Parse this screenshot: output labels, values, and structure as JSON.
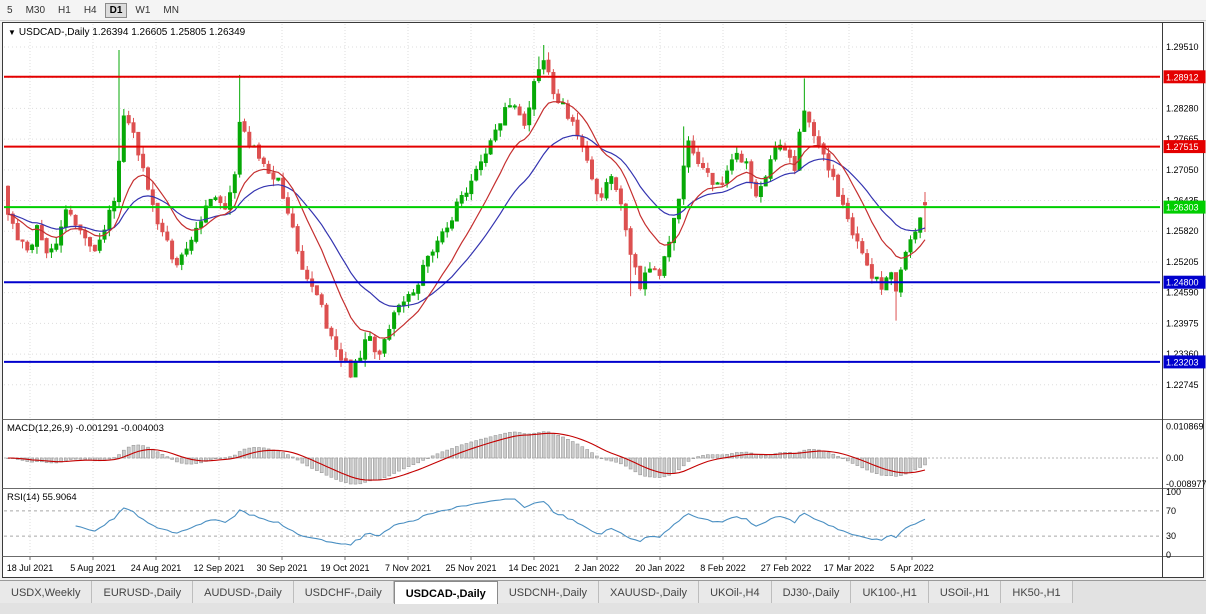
{
  "toolbar": {
    "timeframes": [
      "5",
      "M30",
      "H1",
      "H4",
      "D1",
      "W1",
      "MN"
    ],
    "active": "D1"
  },
  "chart": {
    "title": "USDCAD-,Daily 1.26394 1.26605 1.25805 1.26349",
    "symbol": "USDCAD-,Daily",
    "ohlc_display": {
      "open": "1.26394",
      "high": "1.26605",
      "low": "1.25805",
      "close": "1.26349"
    },
    "price_axis_ticks": [
      "1.29510",
      "1.28895",
      "1.28280",
      "1.27665",
      "1.27050",
      "1.26435",
      "1.25820",
      "1.25205",
      "1.24590",
      "1.23975",
      "1.23360",
      "1.22745"
    ],
    "level_labels": [
      "1.28912",
      "1.27515",
      "1.26303",
      "1.24800",
      "1.23203"
    ],
    "dates": [
      "18 Jul 2021",
      "5 Aug 2021",
      "24 Aug 2021",
      "12 Sep 2021",
      "30 Sep 2021",
      "19 Oct 2021",
      "7 Nov 2021",
      "25 Nov 2021",
      "14 Dec 2021",
      "2 Jan 2022",
      "20 Jan 2022",
      "8 Feb 2022",
      "27 Feb 2022",
      "17 Mar 2022",
      "5 Apr 2022"
    ]
  },
  "macd": {
    "title": "MACD(12,26,9) -0.001291 -0.004003",
    "value": "-0.001291",
    "signal_value": "-0.004003",
    "axis": [
      "0.010869",
      "0.00",
      "-0.008977"
    ]
  },
  "rsi": {
    "title": "RSI(14) 55.9064",
    "value": "55.9064",
    "axis": [
      "100",
      "70",
      "30",
      "0"
    ]
  },
  "tabs": {
    "items": [
      "USDX,Weekly",
      "EURUSD-,Daily",
      "AUDUSD-,Daily",
      "USDCHF-,Daily",
      "USDCAD-,Daily",
      "USDCNH-,Daily",
      "XAUUSD-,Daily",
      "UKOil-,H4",
      "DJ30-,Daily",
      "UK100-,H1",
      "USOil-,H1",
      "HK50-,H1"
    ],
    "selected": "USDCAD-,Daily"
  },
  "colors": {
    "candle_up": "#07a907",
    "candle_down": "#dd5050",
    "ma_fast": "#c52f2f",
    "ma_slow": "#3434b0",
    "macd_signal": "#c30000",
    "macd_hist_fill": "#cccccc",
    "macd_hist_stroke": "#9a9a9a",
    "rsi_line": "#4a8fc2",
    "level_red": "#e40000",
    "level_green": "#00ce00",
    "level_blue": "#0000cd",
    "grid": "#dddddd"
  },
  "chart_data": {
    "type": "candlestick",
    "symbol": "USDCAD",
    "timeframe": "Daily",
    "bars": 191,
    "y_range": [
      1.2208,
      1.2997
    ],
    "x_range_dates": [
      "18 Jul 2021",
      "5 Apr 2022"
    ],
    "last_bar": {
      "open": 1.26394,
      "high": 1.26605,
      "low": 1.25805,
      "close": 1.26349
    },
    "close_anchors": [
      [
        0,
        1.262
      ],
      [
        2,
        1.2565
      ],
      [
        4,
        1.2545
      ],
      [
        6,
        1.2585
      ],
      [
        8,
        1.253
      ],
      [
        10,
        1.2555
      ],
      [
        12,
        1.2618
      ],
      [
        14,
        1.26
      ],
      [
        16,
        1.2568
      ],
      [
        18,
        1.2545
      ],
      [
        20,
        1.259
      ],
      [
        22,
        1.265
      ],
      [
        23,
        1.272
      ],
      [
        24,
        1.2815
      ],
      [
        26,
        1.2788
      ],
      [
        28,
        1.27
      ],
      [
        31,
        1.2605
      ],
      [
        33,
        1.2555
      ],
      [
        35,
        1.251
      ],
      [
        37,
        1.2545
      ],
      [
        39,
        1.258
      ],
      [
        41,
        1.2635
      ],
      [
        43,
        1.2645
      ],
      [
        45,
        1.263
      ],
      [
        47,
        1.27
      ],
      [
        48,
        1.2805
      ],
      [
        50,
        1.2762
      ],
      [
        52,
        1.2722
      ],
      [
        54,
        1.2695
      ],
      [
        56,
        1.2678
      ],
      [
        58,
        1.2625
      ],
      [
        60,
        1.254
      ],
      [
        62,
        1.248
      ],
      [
        64,
        1.2462
      ],
      [
        66,
        1.2388
      ],
      [
        68,
        1.235
      ],
      [
        70,
        1.2318
      ],
      [
        71,
        1.23
      ],
      [
        73,
        1.2338
      ],
      [
        75,
        1.2372
      ],
      [
        77,
        1.233
      ],
      [
        79,
        1.2388
      ],
      [
        81,
        1.243
      ],
      [
        83,
        1.2455
      ],
      [
        85,
        1.2478
      ],
      [
        87,
        1.253
      ],
      [
        89,
        1.2568
      ],
      [
        91,
        1.2592
      ],
      [
        93,
        1.263
      ],
      [
        95,
        1.2658
      ],
      [
        97,
        1.2695
      ],
      [
        99,
        1.273
      ],
      [
        101,
        1.279
      ],
      [
        103,
        1.282
      ],
      [
        105,
        1.2838
      ],
      [
        107,
        1.279
      ],
      [
        109,
        1.2885
      ],
      [
        111,
        1.292
      ],
      [
        113,
        1.2868
      ],
      [
        115,
        1.2832
      ],
      [
        117,
        1.2802
      ],
      [
        119,
        1.2762
      ],
      [
        121,
        1.2682
      ],
      [
        123,
        1.2645
      ],
      [
        125,
        1.27
      ],
      [
        127,
        1.2632
      ],
      [
        129,
        1.2528
      ],
      [
        131,
        1.2478
      ],
      [
        133,
        1.2512
      ],
      [
        135,
        1.2502
      ],
      [
        137,
        1.256
      ],
      [
        139,
        1.2642
      ],
      [
        141,
        1.2772
      ],
      [
        143,
        1.2722
      ],
      [
        145,
        1.2702
      ],
      [
        147,
        1.2668
      ],
      [
        149,
        1.27
      ],
      [
        151,
        1.2748
      ],
      [
        153,
        1.2712
      ],
      [
        155,
        1.2652
      ],
      [
        157,
        1.2692
      ],
      [
        159,
        1.2738
      ],
      [
        161,
        1.2755
      ],
      [
        163,
        1.2712
      ],
      [
        165,
        1.2832
      ],
      [
        167,
        1.277
      ],
      [
        169,
        1.2738
      ],
      [
        171,
        1.2692
      ],
      [
        173,
        1.2628
      ],
      [
        175,
        1.2578
      ],
      [
        177,
        1.2528
      ],
      [
        179,
        1.2495
      ],
      [
        181,
        1.2475
      ],
      [
        183,
        1.2498
      ],
      [
        184,
        1.2462
      ],
      [
        186,
        1.2532
      ],
      [
        188,
        1.2585
      ],
      [
        190,
        1.26349
      ]
    ],
    "bar_overrides": [
      {
        "i": 0,
        "open": 1.2672
      },
      {
        "i": 23,
        "high": 1.2945
      },
      {
        "i": 48,
        "high": 1.2895
      },
      {
        "i": 110,
        "high": 1.2932
      },
      {
        "i": 111,
        "high": 1.2955
      },
      {
        "i": 140,
        "high": 1.2792
      },
      {
        "i": 165,
        "high": 1.2888
      },
      {
        "i": 71,
        "low": 1.2288
      },
      {
        "i": 72,
        "low": 1.2293
      },
      {
        "i": 129,
        "low": 1.2452
      },
      {
        "i": 184,
        "low": 1.2403
      }
    ],
    "moving_averages": [
      {
        "type": "ema",
        "period": 12,
        "color_key": "ma_fast"
      },
      {
        "type": "ema",
        "period": 26,
        "color_key": "ma_slow"
      }
    ],
    "horizontal_levels": [
      {
        "price": 1.28912,
        "label": "1.28912",
        "color_key": "level_red"
      },
      {
        "price": 1.27515,
        "label": "1.27515",
        "color_key": "level_red"
      },
      {
        "price": 1.26303,
        "label": "1.26303",
        "color_key": "level_green"
      },
      {
        "price": 1.248,
        "label": "1.24800",
        "color_key": "level_blue"
      },
      {
        "price": 1.23203,
        "label": "1.23203",
        "color_key": "level_blue"
      }
    ],
    "macd_params": {
      "fast": 12,
      "slow": 26,
      "signal": 9
    },
    "rsi_params": {
      "period": 14,
      "levels": [
        70,
        30
      ]
    }
  }
}
